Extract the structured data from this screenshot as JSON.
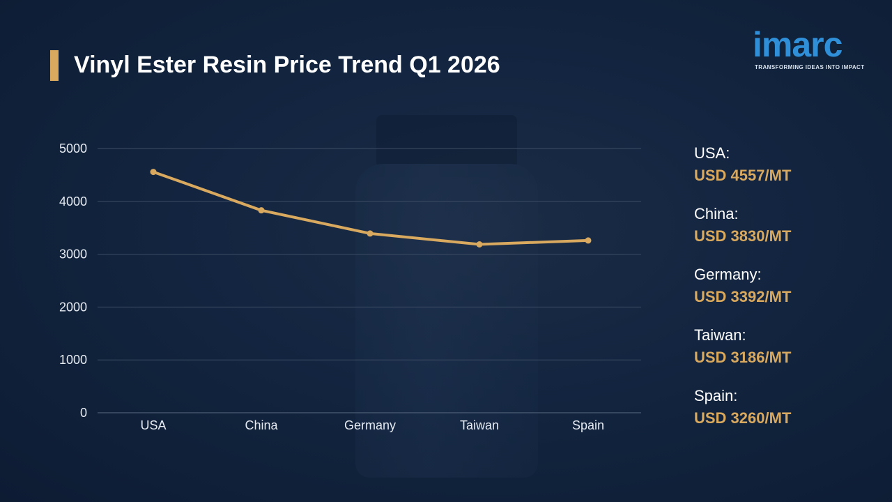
{
  "header": {
    "title": "Vinyl Ester Resin Price Trend Q1 2026"
  },
  "logo": {
    "wordmark": "imarc",
    "tagline": "TRANSFORMING IDEAS INTO IMPACT",
    "color": "#2f8fd8"
  },
  "colors": {
    "accent": "#d8a95e",
    "background": "#0f2038",
    "line": "#d8a95e"
  },
  "chart_data": {
    "type": "line",
    "title": "",
    "xlabel": "",
    "ylabel": "",
    "categories": [
      "USA",
      "China",
      "Germany",
      "Taiwan",
      "Spain"
    ],
    "values": [
      4557,
      3830,
      3392,
      3186,
      3260
    ],
    "ylim": [
      0,
      5000
    ],
    "yticks": [
      0,
      1000,
      2000,
      3000,
      4000,
      5000
    ],
    "grid": true,
    "legend": "right"
  },
  "legend": {
    "items": [
      {
        "country": "USA:",
        "value": "USD 4557/MT"
      },
      {
        "country": "China:",
        "value": "USD 3830/MT"
      },
      {
        "country": "Germany:",
        "value": "USD 3392/MT"
      },
      {
        "country": "Taiwan:",
        "value": "USD 3186/MT"
      },
      {
        "country": "Spain:",
        "value": "USD 3260/MT"
      }
    ]
  }
}
